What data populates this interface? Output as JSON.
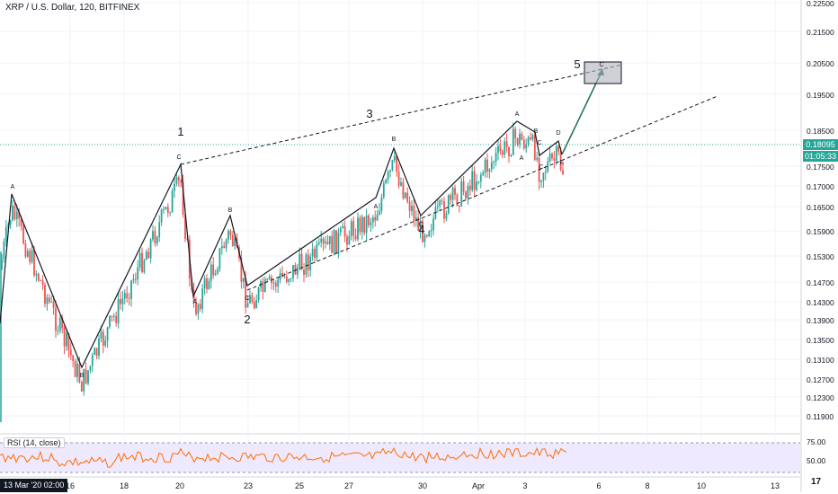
{
  "header": {
    "title": "XRP / U.S. Dollar, 120, BITFINEX"
  },
  "rsi": {
    "label": "RSI (14, close)",
    "levels": [
      "75.00",
      "50.00"
    ]
  },
  "price_axis": {
    "ticks": [
      "0.22500",
      "0.21500",
      "0.20500",
      "0.19500",
      "0.18500",
      "0.17500",
      "0.17000",
      "0.16500",
      "0.15900",
      "0.15300",
      "0.14700",
      "0.14300",
      "0.13900",
      "0.13500",
      "0.13100",
      "0.12700",
      "0.12300",
      "0.11900"
    ],
    "current_price": "0.18095",
    "countdown": "01:05:33"
  },
  "time_axis": {
    "labels": [
      "16",
      "18",
      "20",
      "23",
      "25",
      "27",
      "30",
      "Apr",
      "3",
      "6",
      "8",
      "10",
      "13"
    ],
    "cursor_date": "13 Mar '20  02:00"
  },
  "colors": {
    "up": "#26a69a",
    "down": "#ef5350",
    "rsi_line": "#ff6d00",
    "rsi_band": "#e8e0ff",
    "target_box": "#b0b3ba"
  },
  "chart_data": {
    "type": "candlestick",
    "title": "XRP / U.S. Dollar, 120, BITFINEX",
    "ylim": [
      0.1175,
      0.2275
    ],
    "wave_path": [
      {
        "label": "A",
        "price": 0.1695
      },
      {
        "label": "B",
        "price": 0.1293
      },
      {
        "label": "C",
        "price": 0.1765
      },
      {
        "label": "A",
        "price": 0.145
      },
      {
        "label": "B",
        "price": 0.1625
      },
      {
        "label": "C",
        "price": 0.1455
      },
      {
        "label": "A",
        "price": 0.1675
      },
      {
        "label": "B",
        "price": 0.181
      },
      {
        "label": "C",
        "price": 0.163
      },
      {
        "label": "A",
        "price": 0.188
      },
      {
        "label": "B",
        "price": 0.1835
      },
      {
        "label": "C",
        "price": 0.1785
      },
      {
        "label": "D",
        "price": 0.1815
      },
      {
        "label": "E",
        "price": 0.1775
      }
    ],
    "wave_numbers": [
      "1",
      "2",
      "3",
      "4",
      "5"
    ],
    "target_box": {
      "label": "C",
      "price_low": 0.201,
      "price_high": 0.205
    },
    "rsi_period": 14
  }
}
